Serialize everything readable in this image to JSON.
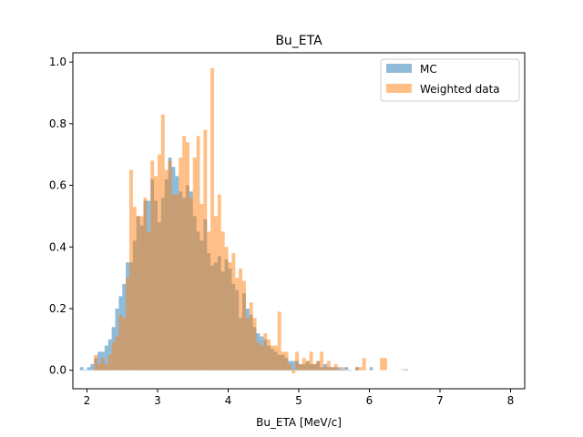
{
  "chart_data": {
    "type": "bar",
    "title": "Bu_ETA",
    "xlabel": "Bu_ETA [MeV/c]",
    "ylabel": "",
    "xlim": [
      1.8,
      8.2
    ],
    "ylim": [
      -0.06,
      1.03
    ],
    "bin_width": 0.05,
    "x_ticks": [
      "2",
      "3",
      "4",
      "5",
      "6",
      "7",
      "8"
    ],
    "y_ticks": [
      "0.0",
      "0.2",
      "0.4",
      "0.6",
      "0.8",
      "1.0"
    ],
    "legend_position": "top-right",
    "grid": false,
    "series": [
      {
        "name": "MC",
        "color": "#1f77b4",
        "alpha": 0.5,
        "bins": [
          [
            1.9,
            0.01
          ],
          [
            1.95,
            0.0
          ],
          [
            2.0,
            0.01
          ],
          [
            2.05,
            0.02
          ],
          [
            2.1,
            0.04
          ],
          [
            2.15,
            0.06
          ],
          [
            2.2,
            0.06
          ],
          [
            2.25,
            0.08
          ],
          [
            2.3,
            0.1
          ],
          [
            2.35,
            0.14
          ],
          [
            2.4,
            0.2
          ],
          [
            2.45,
            0.24
          ],
          [
            2.5,
            0.28
          ],
          [
            2.55,
            0.35
          ],
          [
            2.6,
            0.35
          ],
          [
            2.65,
            0.42
          ],
          [
            2.7,
            0.5
          ],
          [
            2.75,
            0.47
          ],
          [
            2.8,
            0.55
          ],
          [
            2.85,
            0.55
          ],
          [
            2.9,
            0.62
          ],
          [
            2.95,
            0.55
          ],
          [
            3.0,
            0.48
          ],
          [
            3.05,
            0.56
          ],
          [
            3.1,
            0.62
          ],
          [
            3.15,
            0.69
          ],
          [
            3.2,
            0.66
          ],
          [
            3.25,
            0.63
          ],
          [
            3.3,
            0.58
          ],
          [
            3.35,
            0.56
          ],
          [
            3.4,
            0.6
          ],
          [
            3.45,
            0.58
          ],
          [
            3.5,
            0.5
          ],
          [
            3.55,
            0.45
          ],
          [
            3.6,
            0.42
          ],
          [
            3.65,
            0.49
          ],
          [
            3.7,
            0.38
          ],
          [
            3.75,
            0.34
          ],
          [
            3.8,
            0.35
          ],
          [
            3.85,
            0.37
          ],
          [
            3.9,
            0.32
          ],
          [
            3.95,
            0.36
          ],
          [
            4.0,
            0.33
          ],
          [
            4.05,
            0.28
          ],
          [
            4.1,
            0.26
          ],
          [
            4.15,
            0.17
          ],
          [
            4.2,
            0.25
          ],
          [
            4.25,
            0.2
          ],
          [
            4.3,
            0.18
          ],
          [
            4.35,
            0.14
          ],
          [
            4.4,
            0.12
          ],
          [
            4.45,
            0.11
          ],
          [
            4.5,
            0.1
          ],
          [
            4.55,
            0.08
          ],
          [
            4.6,
            0.07
          ],
          [
            4.65,
            0.06
          ],
          [
            4.7,
            0.05
          ],
          [
            4.75,
            0.05
          ],
          [
            4.8,
            0.04
          ],
          [
            4.85,
            0.03
          ],
          [
            4.9,
            0.03
          ],
          [
            4.95,
            0.03
          ],
          [
            5.0,
            0.02
          ],
          [
            5.05,
            0.02
          ],
          [
            5.1,
            0.03
          ],
          [
            5.15,
            0.02
          ],
          [
            5.2,
            0.02
          ],
          [
            5.25,
            0.03
          ],
          [
            5.3,
            0.01
          ],
          [
            5.35,
            0.02
          ],
          [
            5.4,
            0.01
          ],
          [
            5.45,
            0.01
          ],
          [
            5.5,
            0.01
          ],
          [
            5.55,
            0.01
          ],
          [
            5.6,
            0.0
          ],
          [
            5.65,
            0.01
          ],
          [
            5.7,
            0.0
          ],
          [
            5.8,
            0.01
          ],
          [
            6.0,
            0.01
          ],
          [
            6.5,
            0.003
          ]
        ]
      },
      {
        "name": "Weighted data",
        "color": "#ff7f0e",
        "alpha": 0.5,
        "bins": [
          [
            2.1,
            0.05
          ],
          [
            2.15,
            0.02
          ],
          [
            2.2,
            0.04
          ],
          [
            2.25,
            0.02
          ],
          [
            2.3,
            0.05
          ],
          [
            2.35,
            0.09
          ],
          [
            2.4,
            0.11
          ],
          [
            2.45,
            0.18
          ],
          [
            2.5,
            0.17
          ],
          [
            2.55,
            0.3
          ],
          [
            2.6,
            0.65
          ],
          [
            2.65,
            0.53
          ],
          [
            2.7,
            0.5
          ],
          [
            2.75,
            0.5
          ],
          [
            2.8,
            0.56
          ],
          [
            2.85,
            0.45
          ],
          [
            2.9,
            0.68
          ],
          [
            2.95,
            0.63
          ],
          [
            3.0,
            0.7
          ],
          [
            3.05,
            0.83
          ],
          [
            3.1,
            0.65
          ],
          [
            3.15,
            0.68
          ],
          [
            3.2,
            0.57
          ],
          [
            3.25,
            0.57
          ],
          [
            3.3,
            0.69
          ],
          [
            3.35,
            0.76
          ],
          [
            3.4,
            0.74
          ],
          [
            3.45,
            0.56
          ],
          [
            3.5,
            0.69
          ],
          [
            3.55,
            0.76
          ],
          [
            3.6,
            0.54
          ],
          [
            3.65,
            0.78
          ],
          [
            3.7,
            0.45
          ],
          [
            3.75,
            0.98
          ],
          [
            3.8,
            0.5
          ],
          [
            3.85,
            0.57
          ],
          [
            3.9,
            0.45
          ],
          [
            3.95,
            0.4
          ],
          [
            4.0,
            0.35
          ],
          [
            4.05,
            0.38
          ],
          [
            4.1,
            0.3
          ],
          [
            4.15,
            0.33
          ],
          [
            4.2,
            0.29
          ],
          [
            4.25,
            0.17
          ],
          [
            4.3,
            0.22
          ],
          [
            4.35,
            0.17
          ],
          [
            4.4,
            0.09
          ],
          [
            4.45,
            0.08
          ],
          [
            4.5,
            0.12
          ],
          [
            4.55,
            0.1
          ],
          [
            4.6,
            0.08
          ],
          [
            4.65,
            0.08
          ],
          [
            4.7,
            0.19
          ],
          [
            4.75,
            0.06
          ],
          [
            4.8,
            0.06
          ],
          [
            4.85,
            0.02
          ],
          [
            4.9,
            -0.01
          ],
          [
            4.95,
            0.06
          ],
          [
            5.0,
            0.02
          ],
          [
            5.05,
            0.04
          ],
          [
            5.1,
            0.03
          ],
          [
            5.15,
            0.06
          ],
          [
            5.2,
            0.02
          ],
          [
            5.25,
            0.03
          ],
          [
            5.3,
            0.06
          ],
          [
            5.35,
            0.01
          ],
          [
            5.4,
            0.03
          ],
          [
            5.45,
            0.01
          ],
          [
            5.5,
            0.02
          ],
          [
            5.6,
            0.01
          ],
          [
            5.8,
            0.01
          ],
          [
            5.85,
            0.01
          ],
          [
            5.9,
            0.04
          ],
          [
            6.15,
            0.04
          ],
          [
            6.2,
            0.04
          ],
          [
            6.45,
            0.003
          ]
        ]
      }
    ]
  }
}
